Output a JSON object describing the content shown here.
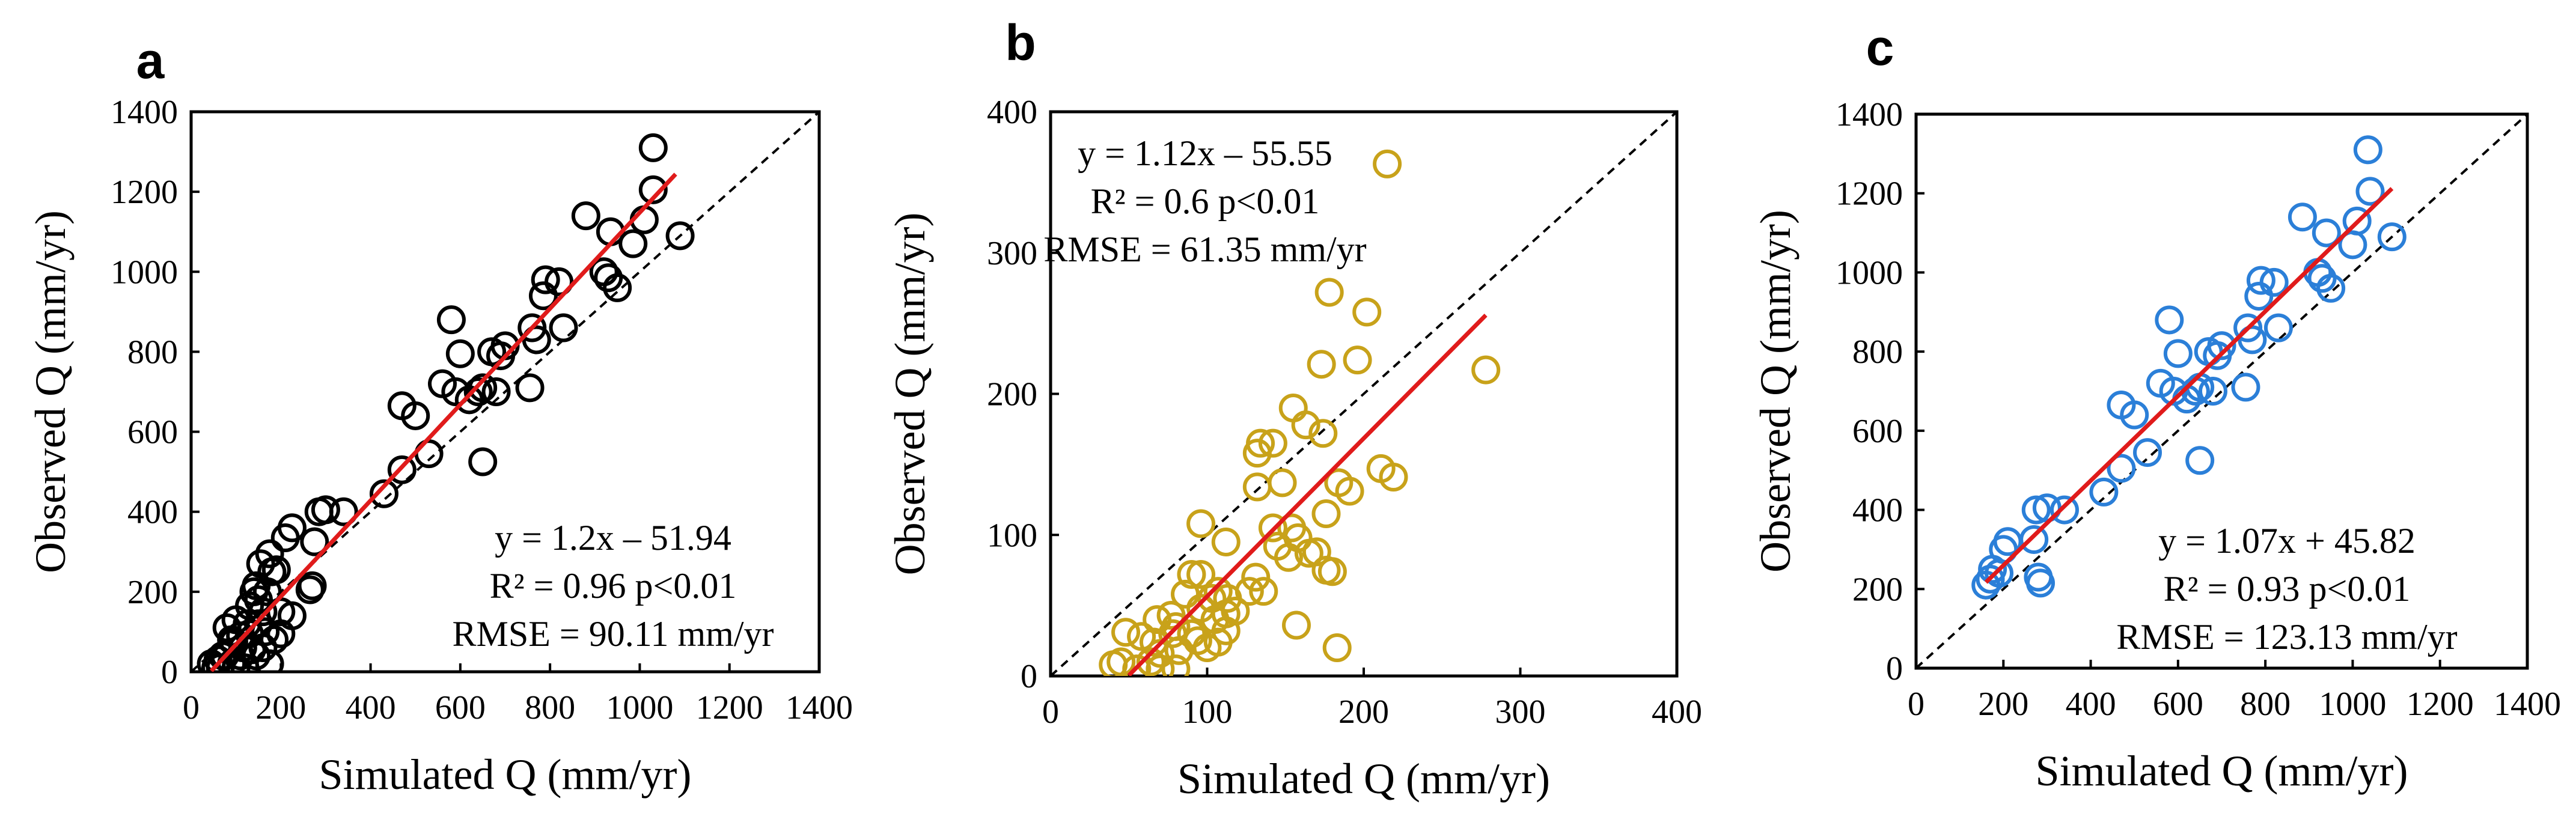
{
  "chart_data": [
    {
      "type": "scatter",
      "panel_label": "a",
      "xlabel": "Simulated Q (mm/yr)",
      "ylabel": "Observed Q (mm/yr)",
      "xlim": [
        0,
        1400
      ],
      "ylim": [
        0,
        1400
      ],
      "xticks": [
        "0",
        "200",
        "400",
        "600",
        "800",
        "1000",
        "1200",
        "1400"
      ],
      "yticks": [
        "0",
        "200",
        "400",
        "600",
        "800",
        "1000",
        "1200",
        "1400"
      ],
      "marker_color": "#000000",
      "fit_color": "#e01b1b",
      "one_to_one_line": true,
      "fit": {
        "slope": 1.2,
        "intercept": -51.94,
        "x_range": [
          45,
          1080
        ]
      },
      "annotations": [
        "y = 1.2x – 51.94",
        "R² = 0.96  p<0.01",
        "RMSE = 90.11 mm/yr"
      ],
      "annotation_position": "bottom-right",
      "points": [
        [
          1030,
          1310
        ],
        [
          1030,
          1205
        ],
        [
          1010,
          1130
        ],
        [
          1090,
          1090
        ],
        [
          985,
          1070
        ],
        [
          935,
          1100
        ],
        [
          950,
          960
        ],
        [
          920,
          1000
        ],
        [
          930,
          985
        ],
        [
          880,
          1140
        ],
        [
          820,
          975
        ],
        [
          790,
          980
        ],
        [
          785,
          940
        ],
        [
          770,
          830
        ],
        [
          830,
          860
        ],
        [
          760,
          860
        ],
        [
          755,
          710
        ],
        [
          700,
          815
        ],
        [
          690,
          790
        ],
        [
          670,
          800
        ],
        [
          650,
          710
        ],
        [
          680,
          700
        ],
        [
          640,
          700
        ],
        [
          650,
          525
        ],
        [
          620,
          680
        ],
        [
          580,
          880
        ],
        [
          600,
          795
        ],
        [
          560,
          720
        ],
        [
          590,
          700
        ],
        [
          530,
          545
        ],
        [
          500,
          640
        ],
        [
          470,
          665
        ],
        [
          470,
          505
        ],
        [
          430,
          445
        ],
        [
          340,
          400
        ],
        [
          300,
          405
        ],
        [
          285,
          400
        ],
        [
          275,
          325
        ],
        [
          270,
          215
        ],
        [
          265,
          205
        ],
        [
          225,
          360
        ],
        [
          210,
          335
        ],
        [
          225,
          140
        ],
        [
          190,
          255
        ],
        [
          200,
          150
        ],
        [
          175,
          295
        ],
        [
          180,
          250
        ],
        [
          155,
          270
        ],
        [
          170,
          200
        ],
        [
          200,
          95
        ],
        [
          145,
          215
        ],
        [
          150,
          180
        ],
        [
          140,
          200
        ],
        [
          160,
          150
        ],
        [
          130,
          165
        ],
        [
          125,
          120
        ],
        [
          150,
          120
        ],
        [
          100,
          130
        ],
        [
          110,
          90
        ],
        [
          175,
          20
        ],
        [
          90,
          80
        ],
        [
          80,
          110
        ],
        [
          95,
          75
        ],
        [
          115,
          60
        ],
        [
          70,
          40
        ],
        [
          60,
          30
        ],
        [
          75,
          40
        ],
        [
          45,
          20
        ],
        [
          55,
          10
        ],
        [
          65,
          10
        ],
        [
          90,
          20
        ],
        [
          100,
          10
        ],
        [
          120,
          10
        ],
        [
          110,
          40
        ],
        [
          135,
          55
        ],
        [
          145,
          40
        ],
        [
          160,
          60
        ],
        [
          185,
          80
        ],
        [
          165,
          100
        ],
        [
          130,
          95
        ]
      ]
    },
    {
      "type": "scatter",
      "panel_label": "b",
      "xlabel": "Simulated Q (mm/yr)",
      "ylabel": "Observed Q (mm/yr)",
      "xlim": [
        0,
        400
      ],
      "ylim": [
        0,
        400
      ],
      "xticks": [
        "0",
        "100",
        "200",
        "300",
        "400"
      ],
      "yticks": [
        "0",
        "100",
        "200",
        "300",
        "400"
      ],
      "marker_color": "#c8a21a",
      "fit_color": "#e01b1b",
      "one_to_one_line": true,
      "fit": {
        "slope": 1.12,
        "intercept": -55.55,
        "x_range": [
          50,
          278
        ]
      },
      "annotations": [
        "y = 1.12x – 55.55",
        "R² = 0.6  p<0.01",
        "RMSE = 61.35 mm/yr"
      ],
      "annotation_position": "top-left",
      "points": [
        [
          215,
          363
        ],
        [
          178,
          272
        ],
        [
          202,
          258
        ],
        [
          196,
          224
        ],
        [
          173,
          221
        ],
        [
          278,
          217
        ],
        [
          163,
          178
        ],
        [
          174,
          172
        ],
        [
          155,
          190
        ],
        [
          142,
          165
        ],
        [
          134,
          165
        ],
        [
          132,
          158
        ],
        [
          211,
          147
        ],
        [
          219,
          141
        ],
        [
          191,
          131
        ],
        [
          184,
          137
        ],
        [
          148,
          137
        ],
        [
          132,
          134
        ],
        [
          176,
          115
        ],
        [
          142,
          105
        ],
        [
          96,
          108
        ],
        [
          154,
          105
        ],
        [
          158,
          98
        ],
        [
          145,
          92
        ],
        [
          112,
          95
        ],
        [
          152,
          84
        ],
        [
          165,
          87
        ],
        [
          170,
          88
        ],
        [
          176,
          75
        ],
        [
          180,
          74
        ],
        [
          131,
          70
        ],
        [
          136,
          60
        ],
        [
          127,
          60
        ],
        [
          113,
          55
        ],
        [
          103,
          55
        ],
        [
          107,
          60
        ],
        [
          96,
          72
        ],
        [
          90,
          72
        ],
        [
          86,
          58
        ],
        [
          112,
          44
        ],
        [
          118,
          46
        ],
        [
          105,
          40
        ],
        [
          96,
          48
        ],
        [
          77,
          43
        ],
        [
          68,
          40
        ],
        [
          80,
          35
        ],
        [
          157,
          36
        ],
        [
          183,
          20
        ],
        [
          48,
          31
        ],
        [
          58,
          28
        ],
        [
          66,
          24
        ],
        [
          78,
          30
        ],
        [
          94,
          25
        ],
        [
          107,
          24
        ],
        [
          112,
          32
        ],
        [
          100,
          20
        ],
        [
          70,
          16
        ],
        [
          82,
          18
        ],
        [
          64,
          10
        ],
        [
          80,
          5
        ],
        [
          40,
          8
        ],
        [
          45,
          10
        ],
        [
          55,
          5
        ],
        [
          70,
          5
        ],
        [
          90,
          30
        ]
      ]
    },
    {
      "type": "scatter",
      "panel_label": "c",
      "xlabel": "Simulated Q (mm/yr)",
      "ylabel": "Observed Q (mm/yr)",
      "xlim": [
        0,
        1400
      ],
      "ylim": [
        0,
        1400
      ],
      "xticks": [
        "0",
        "200",
        "400",
        "600",
        "800",
        "1000",
        "1200",
        "1400"
      ],
      "yticks": [
        "0",
        "200",
        "400",
        "600",
        "800",
        "1000",
        "1200",
        "1400"
      ],
      "marker_color": "#2b7fd8",
      "fit_color": "#e01b1b",
      "one_to_one_line": true,
      "fit": {
        "slope": 1.07,
        "intercept": 45.82,
        "x_range": [
          160,
          1090
        ]
      },
      "annotations": [
        "y = 1.07x + 45.82",
        "R² = 0.93  p<0.01",
        "RMSE = 123.13 mm/yr"
      ],
      "annotation_position": "bottom-right",
      "points": [
        [
          1035,
          1310
        ],
        [
          1040,
          1205
        ],
        [
          1010,
          1130
        ],
        [
          1090,
          1090
        ],
        [
          1000,
          1070
        ],
        [
          940,
          1100
        ],
        [
          950,
          960
        ],
        [
          920,
          1000
        ],
        [
          930,
          985
        ],
        [
          885,
          1140
        ],
        [
          820,
          975
        ],
        [
          790,
          980
        ],
        [
          785,
          940
        ],
        [
          770,
          830
        ],
        [
          830,
          860
        ],
        [
          760,
          860
        ],
        [
          755,
          710
        ],
        [
          700,
          815
        ],
        [
          690,
          790
        ],
        [
          670,
          800
        ],
        [
          650,
          710
        ],
        [
          680,
          700
        ],
        [
          640,
          700
        ],
        [
          650,
          525
        ],
        [
          620,
          680
        ],
        [
          580,
          880
        ],
        [
          600,
          795
        ],
        [
          560,
          720
        ],
        [
          590,
          700
        ],
        [
          530,
          545
        ],
        [
          500,
          640
        ],
        [
          470,
          665
        ],
        [
          470,
          505
        ],
        [
          430,
          445
        ],
        [
          340,
          400
        ],
        [
          300,
          405
        ],
        [
          275,
          400
        ],
        [
          270,
          325
        ],
        [
          280,
          230
        ],
        [
          285,
          215
        ],
        [
          210,
          320
        ],
        [
          200,
          300
        ],
        [
          175,
          250
        ],
        [
          190,
          240
        ],
        [
          160,
          210
        ],
        [
          170,
          225
        ]
      ]
    }
  ]
}
